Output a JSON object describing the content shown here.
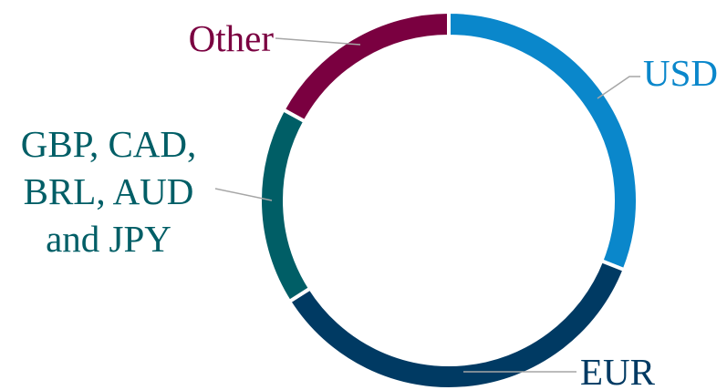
{
  "chart_data": {
    "type": "donut",
    "categories": [
      "USD",
      "EUR",
      "GBP, CAD,\nBRL, AUD\nand JPY",
      "Other"
    ],
    "values": [
      31,
      35,
      17,
      17
    ],
    "colors": [
      "#0a87cb",
      "#003a63",
      "#005e66",
      "#7a0040"
    ]
  }
}
